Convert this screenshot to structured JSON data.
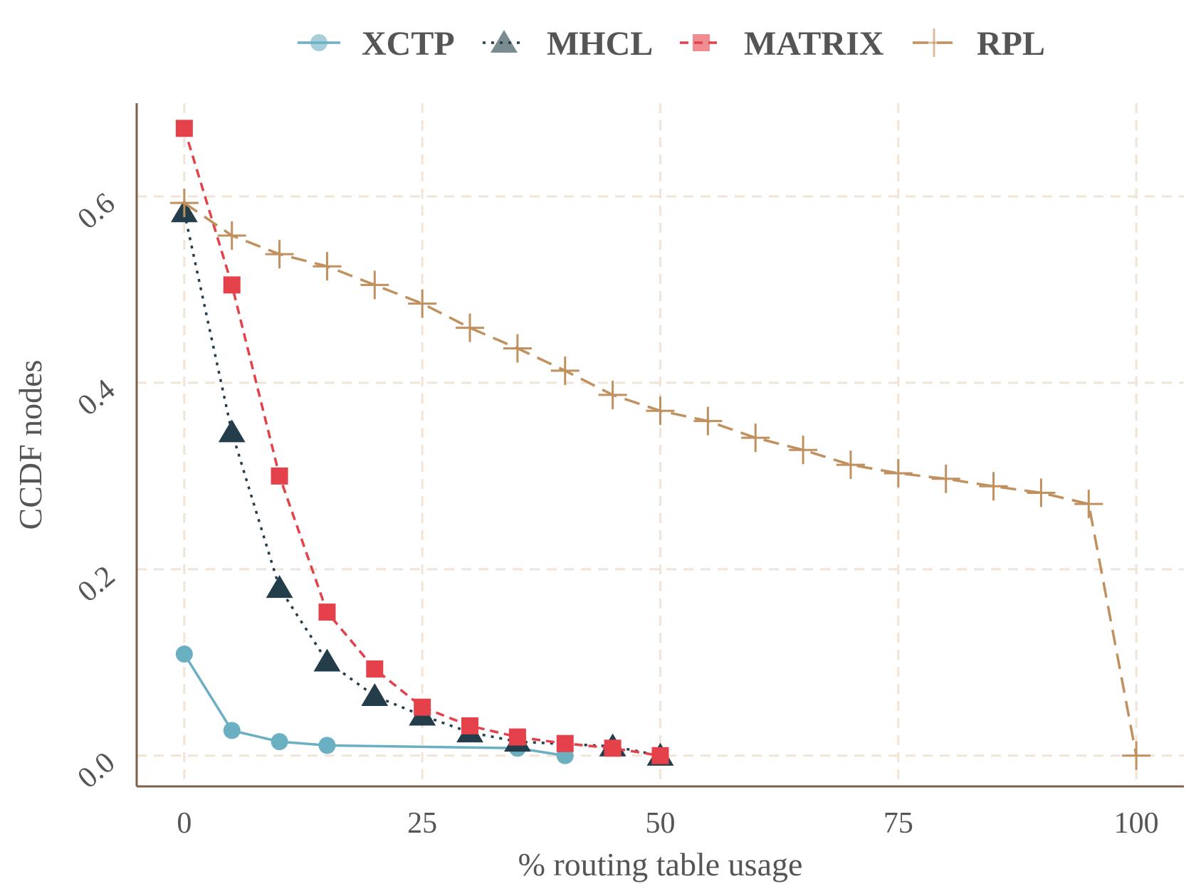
{
  "chart_data": {
    "type": "line",
    "title": "",
    "xlabel": "% routing table usage",
    "ylabel": "CCDF nodes",
    "xlim": [
      -5,
      105
    ],
    "ylim": [
      -0.033,
      0.7
    ],
    "x_ticks": [
      {
        "value": 0,
        "label": "0"
      },
      {
        "value": 25,
        "label": "25"
      },
      {
        "value": 50,
        "label": "50"
      },
      {
        "value": 75,
        "label": "75"
      },
      {
        "value": 100,
        "label": "100"
      }
    ],
    "y_ticks": [
      {
        "value": 0.0,
        "label": "0.0"
      },
      {
        "value": 0.2,
        "label": "0.2"
      },
      {
        "value": 0.4,
        "label": "0.4"
      },
      {
        "value": 0.6,
        "label": "0.6"
      }
    ],
    "grid": true,
    "legend_position": "top",
    "axis_color": "#7b6148",
    "grid_color": "#f1e4d6",
    "series": [
      {
        "name": "XCTP",
        "color": "#6aafc2",
        "marker": "circle",
        "dash": "solid",
        "x": [
          0,
          5,
          10,
          15,
          35,
          40
        ],
        "y": [
          0.109,
          0.027,
          0.015,
          0.011,
          0.008,
          0.0
        ]
      },
      {
        "name": "MHCL",
        "color": "#233d4a",
        "marker": "triangle",
        "dash": "dotted",
        "x": [
          0,
          5,
          10,
          15,
          20,
          25,
          30,
          35,
          45,
          50
        ],
        "y": [
          0.583,
          0.347,
          0.18,
          0.101,
          0.064,
          0.043,
          0.025,
          0.015,
          0.01,
          0.0
        ]
      },
      {
        "name": "MATRIX",
        "color": "#e5414a",
        "marker": "square",
        "dash": "dashed",
        "x": [
          0,
          5,
          10,
          15,
          20,
          25,
          30,
          35,
          40,
          45,
          50
        ],
        "y": [
          0.673,
          0.505,
          0.3,
          0.154,
          0.093,
          0.052,
          0.032,
          0.02,
          0.013,
          0.008,
          0.0
        ]
      },
      {
        "name": "RPL",
        "color": "#c0915e",
        "marker": "plus",
        "dash": "longdash",
        "x": [
          0,
          5,
          10,
          15,
          20,
          25,
          30,
          35,
          40,
          45,
          50,
          55,
          60,
          65,
          70,
          75,
          80,
          85,
          90,
          95,
          100
        ],
        "y": [
          0.593,
          0.558,
          0.538,
          0.525,
          0.505,
          0.485,
          0.459,
          0.437,
          0.413,
          0.387,
          0.37,
          0.359,
          0.341,
          0.328,
          0.312,
          0.303,
          0.297,
          0.289,
          0.282,
          0.27,
          0.0
        ]
      }
    ]
  }
}
